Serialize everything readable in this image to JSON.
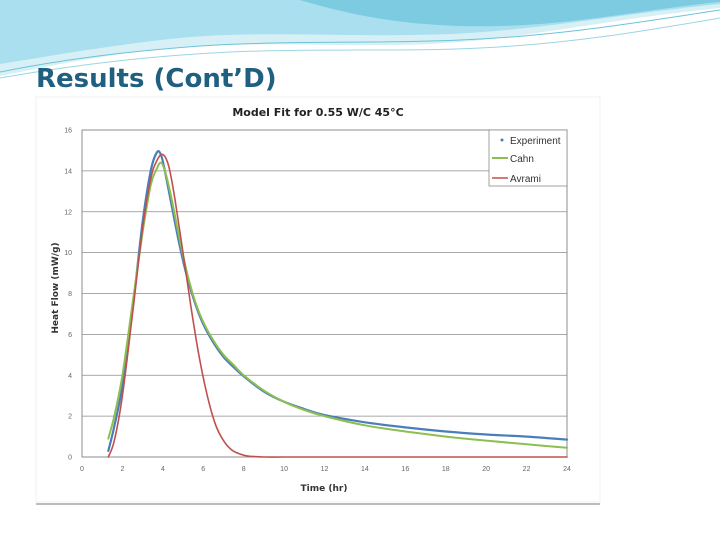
{
  "slide": {
    "title": "Results (Cont’D)"
  },
  "colors": {
    "title": "#1f5f80",
    "wave_light": "#bfe6f0",
    "wave_mid": "#7ccbe0",
    "experiment": "#4a7ebb",
    "cahn": "#8cbf50",
    "avrami": "#c0504d"
  },
  "chart_data": {
    "type": "line",
    "title": "Model Fit for 0.55 W/C  45°C",
    "xlabel": "Time (hr)",
    "ylabel": "Heat Flow (mW/g)",
    "xlim": [
      0,
      24
    ],
    "ylim": [
      0,
      16
    ],
    "xticks": [
      "0",
      "2",
      "4",
      "6",
      "8",
      "10",
      "12",
      "14",
      "16",
      "18",
      "20",
      "22",
      "24"
    ],
    "yticks": [
      "0",
      "2",
      "4",
      "6",
      "8",
      "10",
      "12",
      "14",
      "16"
    ],
    "grid": "horizontal",
    "legend": "top-right",
    "series": [
      {
        "name": "Experiment",
        "x": [
          1.3,
          1.6,
          2.0,
          2.5,
          3.0,
          3.4,
          3.7,
          3.9,
          4.1,
          4.4,
          4.8,
          5.2,
          5.6,
          6.0,
          6.5,
          7.0,
          7.5,
          8.0,
          9.0,
          10.0,
          11.0,
          12.0,
          14.0,
          16.0,
          18.0,
          20.0,
          22.0,
          24.0
        ],
        "y": [
          0.3,
          1.5,
          3.5,
          7.2,
          11.5,
          14.0,
          14.9,
          14.8,
          14.0,
          12.5,
          10.5,
          8.8,
          7.5,
          6.5,
          5.6,
          4.9,
          4.4,
          3.95,
          3.2,
          2.7,
          2.35,
          2.05,
          1.7,
          1.45,
          1.25,
          1.1,
          1.0,
          0.85
        ]
      },
      {
        "name": "Cahn",
        "x": [
          1.3,
          1.6,
          2.0,
          2.5,
          3.0,
          3.4,
          3.7,
          3.9,
          4.1,
          4.4,
          4.8,
          5.2,
          5.6,
          6.0,
          6.5,
          7.0,
          7.5,
          8.0,
          9.0,
          10.0,
          11.0,
          12.0,
          14.0,
          16.0,
          18.0,
          20.0,
          22.0,
          24.0
        ],
        "y": [
          0.9,
          2.0,
          4.0,
          7.5,
          11.0,
          13.3,
          14.1,
          14.4,
          14.0,
          12.8,
          10.8,
          9.0,
          7.6,
          6.6,
          5.7,
          5.0,
          4.5,
          4.0,
          3.25,
          2.7,
          2.3,
          2.0,
          1.55,
          1.25,
          1.0,
          0.8,
          0.62,
          0.45
        ]
      },
      {
        "name": "Avrami",
        "x": [
          1.3,
          1.6,
          2.0,
          2.5,
          3.0,
          3.4,
          3.7,
          4.0,
          4.3,
          4.6,
          5.0,
          5.4,
          5.8,
          6.2,
          6.6,
          7.0,
          7.4,
          7.8,
          8.2,
          9.0,
          10.0,
          12.0,
          24.0
        ],
        "y": [
          0.0,
          0.8,
          3.0,
          7.0,
          11.2,
          13.6,
          14.5,
          14.8,
          14.2,
          12.6,
          10.0,
          7.3,
          4.9,
          3.0,
          1.6,
          0.8,
          0.35,
          0.15,
          0.05,
          0.0,
          0.0,
          0.0,
          0.0
        ]
      }
    ]
  }
}
